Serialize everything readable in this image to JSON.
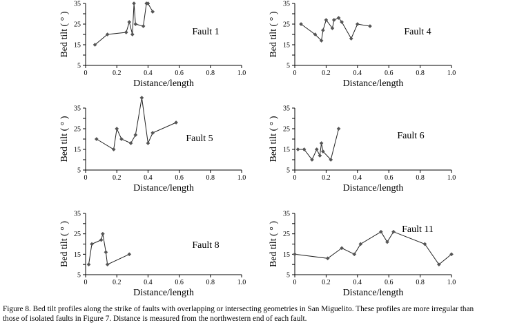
{
  "chart_data": [
    {
      "type": "line",
      "title": "Fault 1",
      "xlabel": "Distance/length",
      "ylabel": "Bed tilt ( ° )",
      "xlim": [
        0,
        1.0
      ],
      "ylim": [
        5,
        35
      ],
      "xticks": [
        "0",
        "0.2",
        "0.4",
        "0.6",
        "0.8",
        "1.0"
      ],
      "yticks": [
        "5",
        "15",
        "25",
        "35"
      ],
      "series": [
        {
          "name": "Fault 1",
          "x": [
            0.06,
            0.14,
            0.26,
            0.28,
            0.3,
            0.31,
            0.32,
            0.37,
            0.39,
            0.4,
            0.43
          ],
          "y": [
            15,
            20,
            21,
            26,
            20,
            35,
            25,
            24,
            35,
            35,
            31
          ]
        }
      ]
    },
    {
      "type": "line",
      "title": "Fault 4",
      "xlabel": "Distance/length",
      "ylabel": "Bed tilt ( ° )",
      "xlim": [
        0,
        1.0
      ],
      "ylim": [
        5,
        35
      ],
      "xticks": [
        "0",
        "0.2",
        "0.4",
        "0.6",
        "0.8",
        "1.0"
      ],
      "yticks": [
        "5",
        "15",
        "25",
        "35"
      ],
      "series": [
        {
          "name": "Fault 4",
          "x": [
            0.04,
            0.13,
            0.17,
            0.18,
            0.2,
            0.24,
            0.25,
            0.28,
            0.3,
            0.36,
            0.4,
            0.48
          ],
          "y": [
            25,
            20,
            17,
            22,
            27,
            23,
            27,
            28,
            26,
            18,
            25,
            24
          ]
        }
      ]
    },
    {
      "type": "line",
      "title": "Fault 5",
      "xlabel": "Distance/length",
      "ylabel": "Bed tilt ( ° )",
      "xlim": [
        0,
        1.0
      ],
      "ylim": [
        5,
        35
      ],
      "xticks": [
        "0",
        "0.2",
        "0.4",
        "0.6",
        "0.8",
        "1.0"
      ],
      "yticks": [
        "5",
        "15",
        "25",
        "35"
      ],
      "series": [
        {
          "name": "Fault 5",
          "x": [
            0.07,
            0.18,
            0.2,
            0.23,
            0.29,
            0.32,
            0.36,
            0.4,
            0.43,
            0.58
          ],
          "y": [
            20,
            15,
            25,
            20,
            18,
            22,
            40,
            18,
            23,
            28
          ]
        }
      ]
    },
    {
      "type": "line",
      "title": "Fault 6",
      "xlabel": "Distance/length",
      "ylabel": "Bed tilt ( ° )",
      "xlim": [
        0,
        1.0
      ],
      "ylim": [
        5,
        35
      ],
      "xticks": [
        "0",
        "0.2",
        "0.4",
        "0.6",
        "0.8",
        "1.0"
      ],
      "yticks": [
        "5",
        "15",
        "25",
        "35"
      ],
      "series": [
        {
          "name": "Fault 6",
          "x": [
            0.02,
            0.06,
            0.11,
            0.14,
            0.16,
            0.17,
            0.18,
            0.23,
            0.28
          ],
          "y": [
            15,
            15,
            10,
            15,
            12,
            18,
            14,
            10,
            25
          ]
        }
      ]
    },
    {
      "type": "line",
      "title": "Fault 8",
      "xlabel": "Distance/length",
      "ylabel": "Bed tilt ( ° )",
      "xlim": [
        0,
        1.0
      ],
      "ylim": [
        5,
        35
      ],
      "xticks": [
        "0",
        "0.2",
        "0.4",
        "0.6",
        "0.8",
        "1.0"
      ],
      "yticks": [
        "5",
        "15",
        "25",
        "35"
      ],
      "series": [
        {
          "name": "Fault 8",
          "x": [
            0.02,
            0.04,
            0.1,
            0.11,
            0.13,
            0.14,
            0.28
          ],
          "y": [
            10,
            20,
            22,
            25,
            16,
            10,
            15
          ]
        }
      ]
    },
    {
      "type": "line",
      "title": "Fault 11",
      "xlabel": "Distance/length",
      "ylabel": "Bed tilt ( ° )",
      "xlim": [
        0,
        1.0
      ],
      "ylim": [
        5,
        35
      ],
      "xticks": [
        "0",
        "0.2",
        "0.4",
        "0.6",
        "0.8",
        "1.0"
      ],
      "yticks": [
        "5",
        "15",
        "25",
        "35"
      ],
      "series": [
        {
          "name": "Fault 11",
          "x": [
            0.0,
            0.21,
            0.3,
            0.38,
            0.42,
            0.55,
            0.59,
            0.63,
            0.83,
            0.92,
            1.0
          ],
          "y": [
            15,
            13,
            18,
            15,
            20,
            26,
            21,
            26,
            20,
            10,
            15
          ]
        }
      ]
    }
  ],
  "caption": {
    "line1": "Figure 8. Bed tilt profiles along the strike of faults with overlapping or intersecting geometries in San Miguelito. These profiles are more irregular than",
    "line2": "those of isolated faults in Figure 7. Distance is measured from the northwestern end of each fault."
  },
  "colors": {
    "line": "#222222",
    "marker": "#555555",
    "axis": "#000000"
  }
}
